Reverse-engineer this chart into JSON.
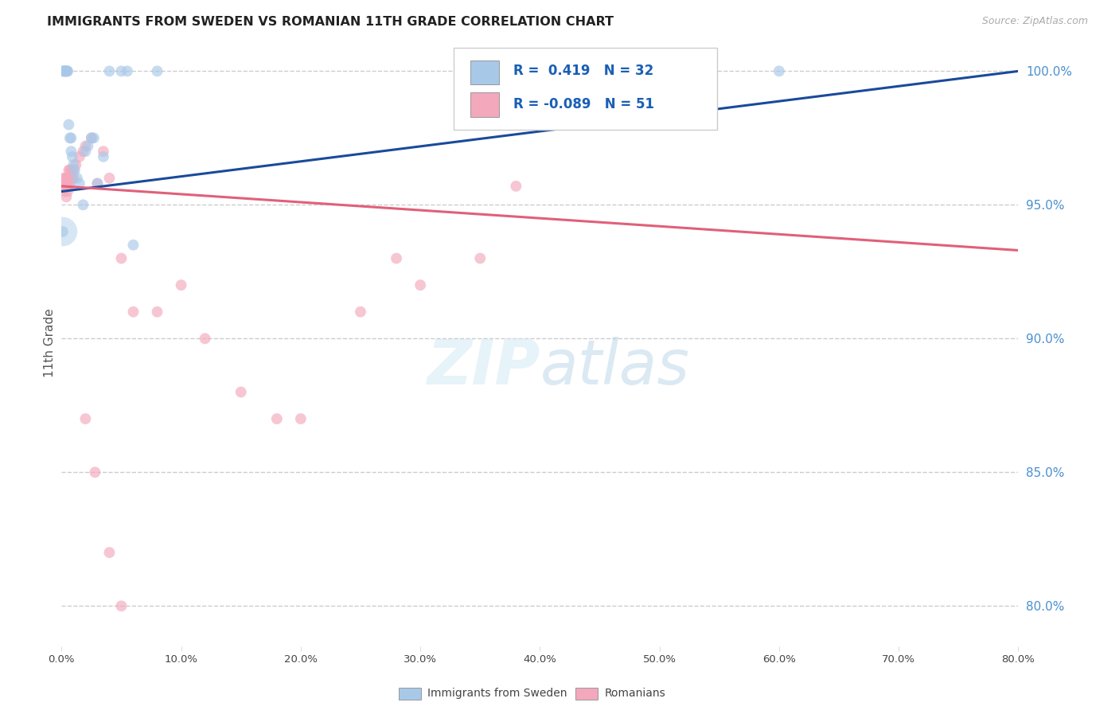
{
  "title": "IMMIGRANTS FROM SWEDEN VS ROMANIAN 11TH GRADE CORRELATION CHART",
  "source": "Source: ZipAtlas.com",
  "ylabel": "11th Grade",
  "yright_labels": [
    "100.0%",
    "95.0%",
    "90.0%",
    "85.0%",
    "80.0%"
  ],
  "yright_values": [
    1.0,
    0.95,
    0.9,
    0.85,
    0.8
  ],
  "xmin": 0.0,
  "xmax": 0.8,
  "ymin": 0.785,
  "ymax": 1.012,
  "legend_r_sweden": "0.419",
  "legend_n_sweden": "32",
  "legend_r_romanian": "-0.089",
  "legend_n_romanian": "51",
  "watermark": "ZIPatlas",
  "color_sweden": "#a8c8e8",
  "color_romanian": "#f4a8bc",
  "color_sweden_line": "#1a4a9a",
  "color_romanian_line": "#e0607a",
  "color_right_axis": "#4a90d0",
  "sweden_points": [
    [
      0.001,
      1.0
    ],
    [
      0.002,
      1.0
    ],
    [
      0.002,
      1.0
    ],
    [
      0.003,
      1.0
    ],
    [
      0.003,
      1.0
    ],
    [
      0.004,
      1.0
    ],
    [
      0.004,
      1.0
    ],
    [
      0.005,
      1.0
    ],
    [
      0.005,
      1.0
    ],
    [
      0.006,
      0.98
    ],
    [
      0.007,
      0.975
    ],
    [
      0.008,
      0.975
    ],
    [
      0.008,
      0.97
    ],
    [
      0.009,
      0.968
    ],
    [
      0.01,
      0.965
    ],
    [
      0.011,
      0.963
    ],
    [
      0.013,
      0.96
    ],
    [
      0.015,
      0.958
    ],
    [
      0.02,
      0.97
    ],
    [
      0.022,
      0.972
    ],
    [
      0.025,
      0.975
    ],
    [
      0.027,
      0.975
    ],
    [
      0.03,
      0.958
    ],
    [
      0.035,
      0.968
    ],
    [
      0.04,
      1.0
    ],
    [
      0.05,
      1.0
    ],
    [
      0.055,
      1.0
    ],
    [
      0.06,
      0.935
    ],
    [
      0.001,
      0.94
    ],
    [
      0.018,
      0.95
    ],
    [
      0.08,
      1.0
    ],
    [
      0.6,
      1.0
    ]
  ],
  "sweden_sizes": [
    90,
    90,
    90,
    90,
    90,
    90,
    90,
    90,
    90,
    90,
    90,
    90,
    90,
    90,
    90,
    90,
    90,
    90,
    90,
    90,
    90,
    90,
    90,
    90,
    90,
    90,
    90,
    90,
    90,
    90,
    90,
    90
  ],
  "romanian_points": [
    [
      0.001,
      0.957
    ],
    [
      0.001,
      0.957
    ],
    [
      0.001,
      0.957
    ],
    [
      0.001,
      0.957
    ],
    [
      0.002,
      0.96
    ],
    [
      0.002,
      0.955
    ],
    [
      0.003,
      0.96
    ],
    [
      0.003,
      0.957
    ],
    [
      0.004,
      0.96
    ],
    [
      0.004,
      0.957
    ],
    [
      0.004,
      0.953
    ],
    [
      0.005,
      0.96
    ],
    [
      0.005,
      0.957
    ],
    [
      0.005,
      0.955
    ],
    [
      0.006,
      0.963
    ],
    [
      0.006,
      0.96
    ],
    [
      0.006,
      0.957
    ],
    [
      0.007,
      0.963
    ],
    [
      0.007,
      0.96
    ],
    [
      0.007,
      0.958
    ],
    [
      0.008,
      0.963
    ],
    [
      0.008,
      0.96
    ],
    [
      0.009,
      0.963
    ],
    [
      0.009,
      0.96
    ],
    [
      0.01,
      0.963
    ],
    [
      0.01,
      0.96
    ],
    [
      0.012,
      0.965
    ],
    [
      0.015,
      0.968
    ],
    [
      0.018,
      0.97
    ],
    [
      0.02,
      0.972
    ],
    [
      0.025,
      0.975
    ],
    [
      0.03,
      0.958
    ],
    [
      0.035,
      0.97
    ],
    [
      0.04,
      0.96
    ],
    [
      0.05,
      0.93
    ],
    [
      0.06,
      0.91
    ],
    [
      0.08,
      0.91
    ],
    [
      0.1,
      0.92
    ],
    [
      0.12,
      0.9
    ],
    [
      0.15,
      0.88
    ],
    [
      0.18,
      0.87
    ],
    [
      0.2,
      0.87
    ],
    [
      0.25,
      0.91
    ],
    [
      0.28,
      0.93
    ],
    [
      0.3,
      0.92
    ],
    [
      0.35,
      0.93
    ],
    [
      0.38,
      0.957
    ],
    [
      0.02,
      0.87
    ],
    [
      0.028,
      0.85
    ],
    [
      0.04,
      0.82
    ],
    [
      0.05,
      0.8
    ]
  ],
  "romanian_sizes": [
    90,
    90,
    90,
    90,
    90,
    90,
    90,
    90,
    90,
    90,
    90,
    90,
    90,
    90,
    90,
    90,
    90,
    90,
    90,
    90,
    90,
    90,
    90,
    90,
    90,
    90,
    90,
    90,
    90,
    90,
    90,
    90,
    90,
    90,
    90,
    90,
    90,
    90,
    90,
    90,
    90,
    90,
    90,
    90,
    90,
    90,
    90,
    90,
    90,
    90,
    90
  ],
  "trend_sweden_x0": 0.0,
  "trend_sweden_y0": 0.955,
  "trend_sweden_x1": 0.8,
  "trend_sweden_y1": 1.0,
  "trend_romanian_x0": 0.0,
  "trend_romanian_y0": 0.957,
  "trend_romanian_x1": 0.8,
  "trend_romanian_y1": 0.933
}
